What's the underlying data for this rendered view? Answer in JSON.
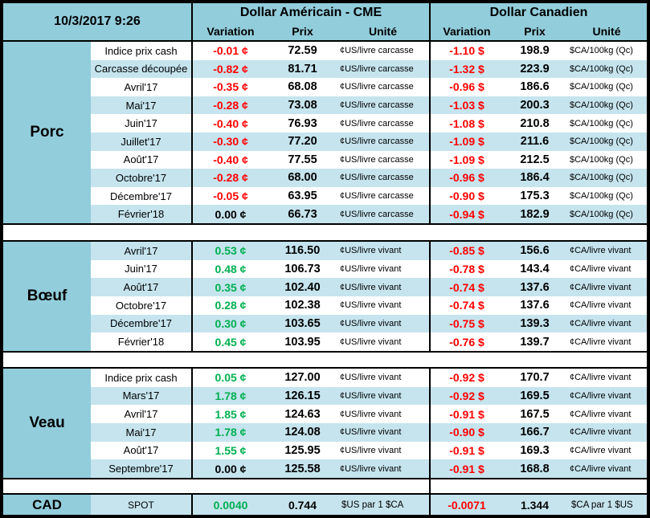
{
  "header": {
    "datetime": "10/3/2017 9:26",
    "us_title": "Dollar Américain - CME",
    "ca_title": "Dollar Canadien",
    "col_variation": "Variation",
    "col_prix": "Prix",
    "col_unite": "Unité"
  },
  "colors": {
    "header_blue": "#92CDDC",
    "row_blue": "#C5E4EE",
    "positive_green": "#00B050",
    "negative_red": "#FF0000",
    "text_black": "#000000"
  },
  "sections": [
    {
      "name": "Porc",
      "stripe_start": "white",
      "rows": [
        {
          "label": "Indice prix cash",
          "us_variation": "-0.01 ¢",
          "us_prix": "72.59",
          "us_unit": "¢US/livre carcasse",
          "ca_variation": "-1.10 $",
          "ca_prix": "198.9",
          "ca_unit": "$CA/100kg (Qc)"
        },
        {
          "label": "Carcasse découpée",
          "us_variation": "-0.82 ¢",
          "us_prix": "81.71",
          "us_unit": "¢US/livre carcasse",
          "ca_variation": "-1.32 $",
          "ca_prix": "223.9",
          "ca_unit": "$CA/100kg (Qc)"
        },
        {
          "label": "Avril'17",
          "us_variation": "-0.35 ¢",
          "us_prix": "68.08",
          "us_unit": "¢US/livre carcasse",
          "ca_variation": "-0.96 $",
          "ca_prix": "186.6",
          "ca_unit": "$CA/100kg (Qc)"
        },
        {
          "label": "Mai'17",
          "us_variation": "-0.28 ¢",
          "us_prix": "73.08",
          "us_unit": "¢US/livre carcasse",
          "ca_variation": "-1.03 $",
          "ca_prix": "200.3",
          "ca_unit": "$CA/100kg (Qc)"
        },
        {
          "label": "Juin'17",
          "us_variation": "-0.40 ¢",
          "us_prix": "76.93",
          "us_unit": "¢US/livre carcasse",
          "ca_variation": "-1.08 $",
          "ca_prix": "210.8",
          "ca_unit": "$CA/100kg (Qc)"
        },
        {
          "label": "Juillet'17",
          "us_variation": "-0.30 ¢",
          "us_prix": "77.20",
          "us_unit": "¢US/livre carcasse",
          "ca_variation": "-1.09 $",
          "ca_prix": "211.6",
          "ca_unit": "$CA/100kg (Qc)"
        },
        {
          "label": "Août'17",
          "us_variation": "-0.40 ¢",
          "us_prix": "77.55",
          "us_unit": "¢US/livre carcasse",
          "ca_variation": "-1.09 $",
          "ca_prix": "212.5",
          "ca_unit": "$CA/100kg (Qc)"
        },
        {
          "label": "Octobre'17",
          "us_variation": "-0.28 ¢",
          "us_prix": "68.00",
          "us_unit": "¢US/livre carcasse",
          "ca_variation": "-0.96 $",
          "ca_prix": "186.4",
          "ca_unit": "$CA/100kg (Qc)"
        },
        {
          "label": "Décembre'17",
          "us_variation": "-0.05 ¢",
          "us_prix": "63.95",
          "us_unit": "¢US/livre carcasse",
          "ca_variation": "-0.90 $",
          "ca_prix": "175.3",
          "ca_unit": "$CA/100kg (Qc)"
        },
        {
          "label": "Février'18",
          "us_variation": "0.00 ¢",
          "us_prix": "66.73",
          "us_unit": "¢US/livre carcasse",
          "ca_variation": "-0.94 $",
          "ca_prix": "182.9",
          "ca_unit": "$CA/100kg (Qc)"
        }
      ]
    },
    {
      "name": "Bœuf",
      "stripe_start": "blue",
      "rows": [
        {
          "label": "Avril'17",
          "us_variation": "0.53 ¢",
          "us_prix": "116.50",
          "us_unit": "¢US/livre vivant",
          "ca_variation": "-0.85 $",
          "ca_prix": "156.6",
          "ca_unit": "¢CA/livre vivant"
        },
        {
          "label": "Juin'17",
          "us_variation": "0.48 ¢",
          "us_prix": "106.73",
          "us_unit": "¢US/livre vivant",
          "ca_variation": "-0.78 $",
          "ca_prix": "143.4",
          "ca_unit": "¢CA/livre vivant"
        },
        {
          "label": "Août'17",
          "us_variation": "0.35 ¢",
          "us_prix": "102.40",
          "us_unit": "¢US/livre vivant",
          "ca_variation": "-0.74 $",
          "ca_prix": "137.6",
          "ca_unit": "¢CA/livre vivant"
        },
        {
          "label": "Octobre'17",
          "us_variation": "0.28 ¢",
          "us_prix": "102.38",
          "us_unit": "¢US/livre vivant",
          "ca_variation": "-0.74 $",
          "ca_prix": "137.6",
          "ca_unit": "¢CA/livre vivant"
        },
        {
          "label": "Décembre'17",
          "us_variation": "0.30 ¢",
          "us_prix": "103.65",
          "us_unit": "¢US/livre vivant",
          "ca_variation": "-0.75 $",
          "ca_prix": "139.3",
          "ca_unit": "¢CA/livre vivant"
        },
        {
          "label": "Février'18",
          "us_variation": "0.45 ¢",
          "us_prix": "103.95",
          "us_unit": "¢US/livre vivant",
          "ca_variation": "-0.76 $",
          "ca_prix": "139.7",
          "ca_unit": "¢CA/livre vivant"
        }
      ]
    },
    {
      "name": "Veau",
      "stripe_start": "white",
      "rows": [
        {
          "label": "Indice prix cash",
          "us_variation": "0.05 ¢",
          "us_prix": "127.00",
          "us_unit": "¢US/livre vivant",
          "ca_variation": "-0.92 $",
          "ca_prix": "170.7",
          "ca_unit": "¢CA/livre vivant"
        },
        {
          "label": "Mars'17",
          "us_variation": "1.78 ¢",
          "us_prix": "126.15",
          "us_unit": "¢US/livre vivant",
          "ca_variation": "-0.92 $",
          "ca_prix": "169.5",
          "ca_unit": "¢CA/livre vivant"
        },
        {
          "label": "Avril'17",
          "us_variation": "1.85 ¢",
          "us_prix": "124.63",
          "us_unit": "¢US/livre vivant",
          "ca_variation": "-0.91 $",
          "ca_prix": "167.5",
          "ca_unit": "¢CA/livre vivant"
        },
        {
          "label": "Mai'17",
          "us_variation": "1.78 ¢",
          "us_prix": "124.08",
          "us_unit": "¢US/livre vivant",
          "ca_variation": "-0.90 $",
          "ca_prix": "166.7",
          "ca_unit": "¢CA/livre vivant"
        },
        {
          "label": "Août'17",
          "us_variation": "1.55 ¢",
          "us_prix": "125.95",
          "us_unit": "¢US/livre vivant",
          "ca_variation": "-0.91 $",
          "ca_prix": "169.3",
          "ca_unit": "¢CA/livre vivant"
        },
        {
          "label": "Septembre'17",
          "us_variation": "0.00 ¢",
          "us_prix": "125.58",
          "us_unit": "¢US/livre vivant",
          "ca_variation": "-0.91 $",
          "ca_prix": "168.8",
          "ca_unit": "¢CA/livre vivant"
        }
      ]
    }
  ],
  "cad": {
    "name": "CAD",
    "label": "SPOT",
    "us_variation": "0.0040",
    "us_prix": "0.744",
    "us_unit": "$US par 1 $CA",
    "ca_variation": "-0.0071",
    "ca_prix": "1.344",
    "ca_unit": "$CA par 1 $US"
  }
}
